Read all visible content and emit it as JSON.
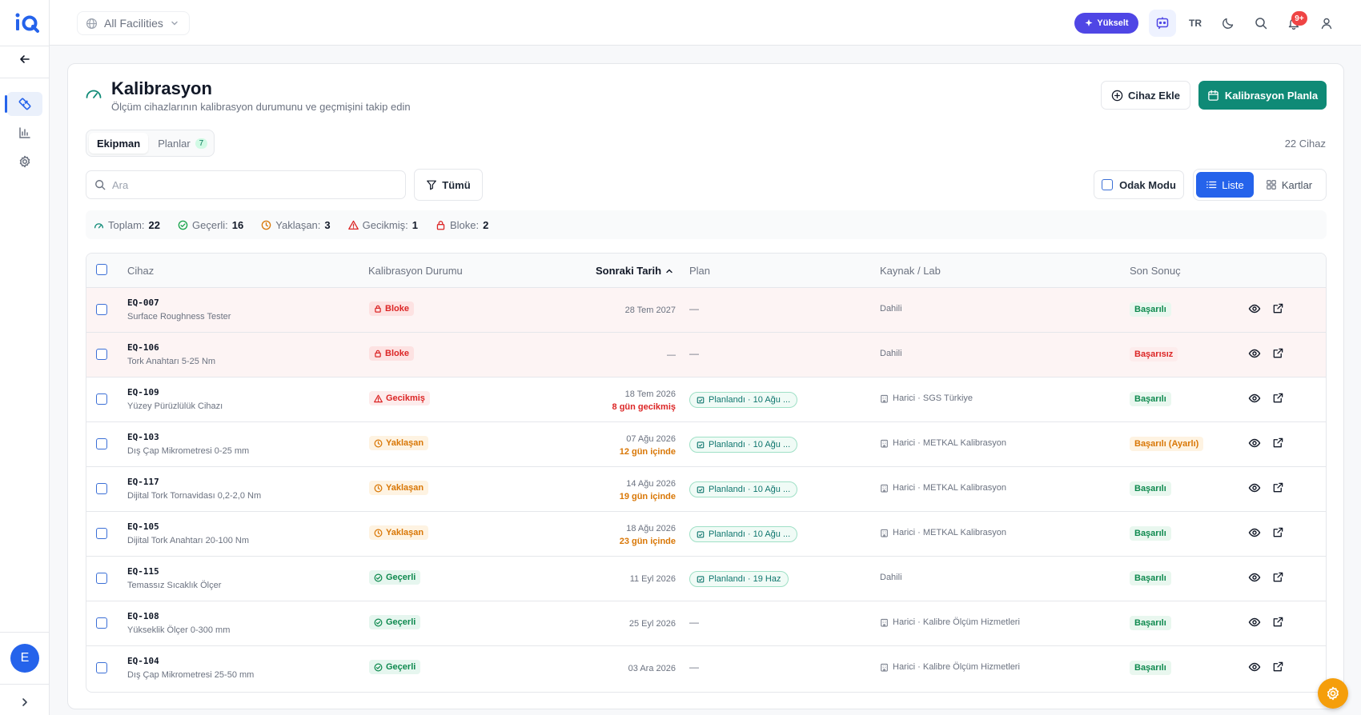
{
  "app": {
    "logo_text": "iQ"
  },
  "topbar": {
    "facility": "All Facilities",
    "upgrade_label": "Yükselt",
    "language": "TR",
    "notification_badge": "9+"
  },
  "sidebar": {
    "avatar_initial": "E",
    "items": [
      {
        "name": "calibration",
        "icon": "ruler-icon",
        "active": true
      },
      {
        "name": "reports",
        "icon": "bar-chart-icon",
        "active": false
      },
      {
        "name": "settings",
        "icon": "gear-icon",
        "active": false
      }
    ]
  },
  "page": {
    "title": "Kalibrasyon",
    "subtitle": "Ölçüm cihazlarının kalibrasyon durumunu ve geçmişini takip edin",
    "add_device_label": "Cihaz Ekle",
    "plan_calibration_label": "Kalibrasyon Planla",
    "device_count": "22 Cihaz"
  },
  "tabs": [
    {
      "label": "Ekipman",
      "active": true
    },
    {
      "label": "Planlar",
      "count": "7",
      "active": false
    }
  ],
  "toolbar": {
    "search_placeholder": "Ara",
    "filter_label": "Tümü",
    "focus_mode_label": "Odak Modu",
    "view_list_label": "Liste",
    "view_cards_label": "Kartlar"
  },
  "stats": [
    {
      "label": "Toplam:",
      "value": "22",
      "icon": "gauge-icon",
      "color": "#0f8a76"
    },
    {
      "label": "Geçerli:",
      "value": "16",
      "icon": "check-circle-icon",
      "color": "#16a34a"
    },
    {
      "label": "Yaklaşan:",
      "value": "3",
      "icon": "clock-icon",
      "color": "#d97706"
    },
    {
      "label": "Gecikmiş:",
      "value": "1",
      "icon": "warning-icon",
      "color": "#dc2626"
    },
    {
      "label": "Bloke:",
      "value": "2",
      "icon": "lock-icon",
      "color": "#dc2626"
    }
  ],
  "table": {
    "columns": [
      "Cihaz",
      "Kalibrasyon Durumu",
      "Sonraki Tarih",
      "Plan",
      "Kaynak / Lab",
      "Son Sonuç"
    ],
    "rows": [
      {
        "id": "EQ-007",
        "name": "Surface Roughness Tester",
        "status": "Bloke",
        "status_type": "blocked",
        "date": "28 Tem 2027",
        "date_note": "",
        "plan": "—",
        "plan_type": "none",
        "source": "Dahili",
        "source_icon": false,
        "result": "Başarılı",
        "result_type": "ok"
      },
      {
        "id": "EQ-106",
        "name": "Tork Anahtarı 5-25 Nm",
        "status": "Bloke",
        "status_type": "blocked",
        "date": "—",
        "date_note": "",
        "plan": "—",
        "plan_type": "none",
        "source": "Dahili",
        "source_icon": false,
        "result": "Başarısız",
        "result_type": "fail"
      },
      {
        "id": "EQ-109",
        "name": "Yüzey Pürüzlülük Cihazı",
        "status": "Gecikmiş",
        "status_type": "overdue",
        "date": "18 Tem 2026",
        "date_note": "8 gün gecikmiş",
        "plan": "Planlandı · 10 Ağu ...",
        "plan_type": "planned",
        "source": "Harici · SGS Türkiye",
        "source_icon": true,
        "result": "Başarılı",
        "result_type": "ok"
      },
      {
        "id": "EQ-103",
        "name": "Dış Çap Mikrometresi 0-25 mm",
        "status": "Yaklaşan",
        "status_type": "upcoming",
        "date": "07 Ağu 2026",
        "date_note": "12 gün içinde",
        "plan": "Planlandı · 10 Ağu ...",
        "plan_type": "planned",
        "source": "Harici · METKAL Kalibrasyon",
        "source_icon": true,
        "result": "Başarılı (Ayarlı)",
        "result_type": "adj"
      },
      {
        "id": "EQ-117",
        "name": "Dijital Tork Tornavidası 0,2-2,0 Nm",
        "status": "Yaklaşan",
        "status_type": "upcoming",
        "date": "14 Ağu 2026",
        "date_note": "19 gün içinde",
        "plan": "Planlandı · 10 Ağu ...",
        "plan_type": "planned",
        "source": "Harici · METKAL Kalibrasyon",
        "source_icon": true,
        "result": "Başarılı",
        "result_type": "ok"
      },
      {
        "id": "EQ-105",
        "name": "Dijital Tork Anahtarı 20-100 Nm",
        "status": "Yaklaşan",
        "status_type": "upcoming",
        "date": "18 Ağu 2026",
        "date_note": "23 gün içinde",
        "plan": "Planlandı · 10 Ağu ...",
        "plan_type": "planned",
        "source": "Harici · METKAL Kalibrasyon",
        "source_icon": true,
        "result": "Başarılı",
        "result_type": "ok"
      },
      {
        "id": "EQ-115",
        "name": "Temassız Sıcaklık Ölçer",
        "status": "Geçerli",
        "status_type": "valid",
        "date": "11 Eyl 2026",
        "date_note": "",
        "plan": "Planlandı · 19 Haz",
        "plan_type": "planned",
        "source": "Dahili",
        "source_icon": false,
        "result": "Başarılı",
        "result_type": "ok"
      },
      {
        "id": "EQ-108",
        "name": "Yükseklik Ölçer 0-300 mm",
        "status": "Geçerli",
        "status_type": "valid",
        "date": "25 Eyl 2026",
        "date_note": "",
        "plan": "—",
        "plan_type": "none",
        "source": "Harici · Kalibre Ölçüm Hizmetleri",
        "source_icon": true,
        "result": "Başarılı",
        "result_type": "ok"
      },
      {
        "id": "EQ-104",
        "name": "Dış Çap Mikrometresi 25-50 mm",
        "status": "Geçerli",
        "status_type": "valid",
        "date": "03 Ara 2026",
        "date_note": "",
        "plan": "—",
        "plan_type": "none",
        "source": "Harici · Kalibre Ölçüm Hizmetleri",
        "source_icon": true,
        "result": "Başarılı",
        "result_type": "ok"
      }
    ]
  },
  "colors": {
    "primary": "#0f8a76",
    "accent": "#2563eb",
    "upgrade": "#4f46e5",
    "danger": "#dc2626",
    "warning": "#d97706",
    "success": "#0f8a4f"
  }
}
